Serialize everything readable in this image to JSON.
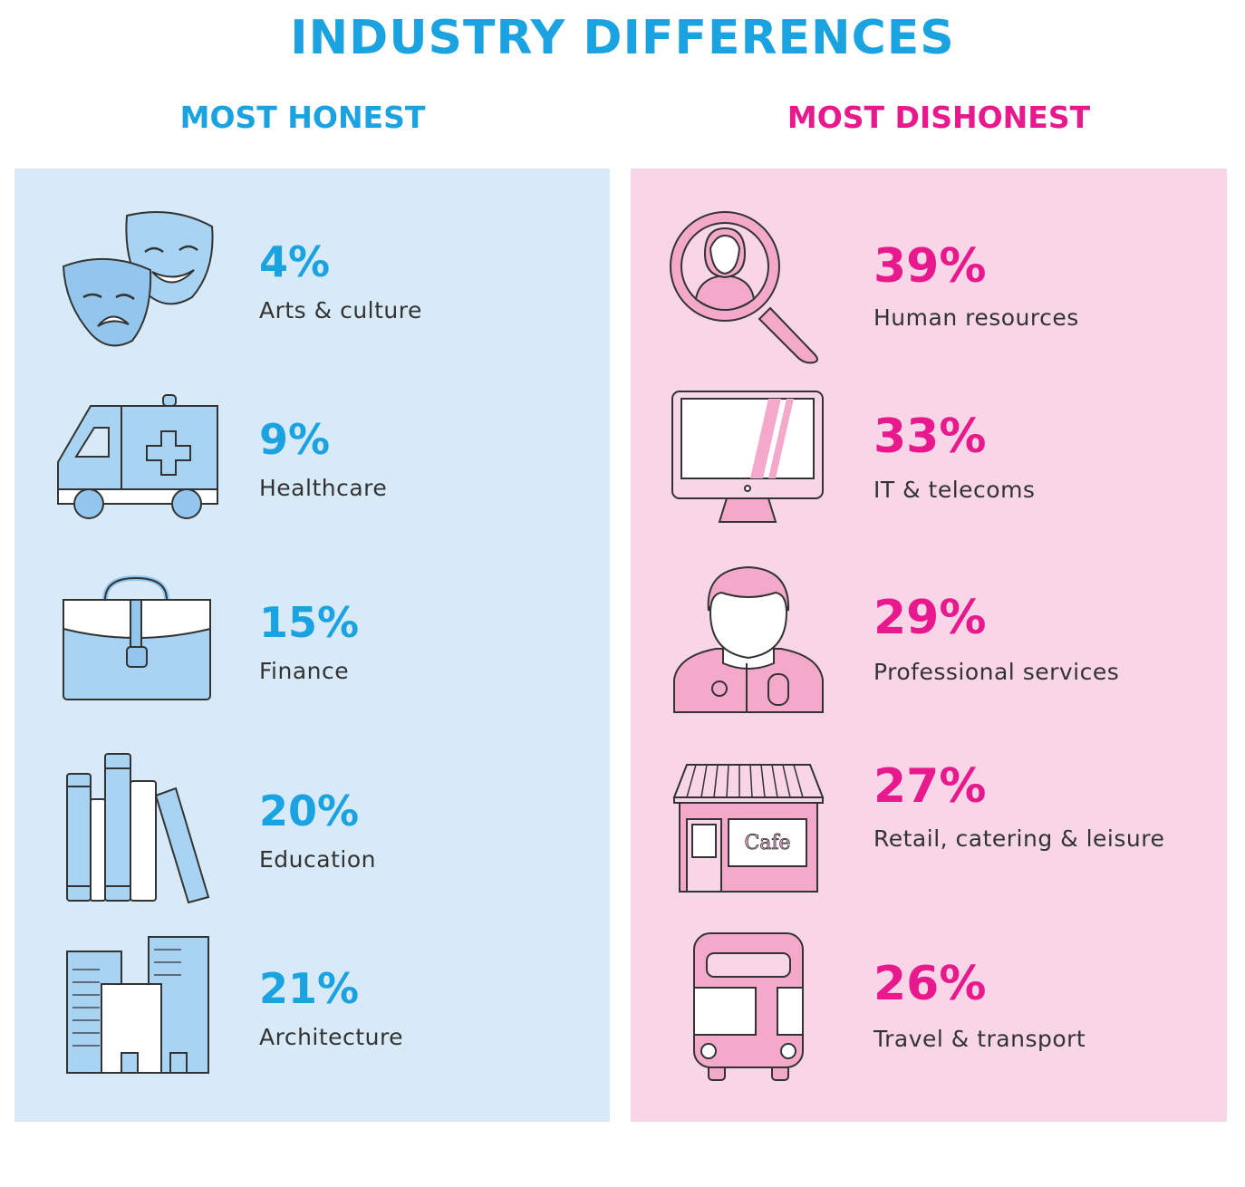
{
  "title": "INDUSTRY DIFFERENCES",
  "honest": {
    "heading": "MOST HONEST",
    "items": [
      {
        "percent": "4%",
        "label": "Arts & culture",
        "icon": "theatre-masks-icon"
      },
      {
        "percent": "9%",
        "label": "Healthcare",
        "icon": "ambulance-icon"
      },
      {
        "percent": "15%",
        "label": "Finance",
        "icon": "briefcase-icon"
      },
      {
        "percent": "20%",
        "label": "Education",
        "icon": "books-icon"
      },
      {
        "percent": "21%",
        "label": "Architecture",
        "icon": "buildings-icon"
      }
    ]
  },
  "dishonest": {
    "heading": "MOST DISHONEST",
    "items": [
      {
        "percent": "39%",
        "label": "Human resources",
        "icon": "person-magnifier-icon"
      },
      {
        "percent": "33%",
        "label": "IT & telecoms",
        "icon": "computer-monitor-icon"
      },
      {
        "percent": "29%",
        "label": "Professional services",
        "icon": "professional-person-icon"
      },
      {
        "percent": "27%",
        "label": "Retail, catering & leisure",
        "icon": "cafe-shop-icon",
        "sign": "Cafe"
      },
      {
        "percent": "26%",
        "label": "Travel & transport",
        "icon": "bus-icon"
      }
    ]
  },
  "colors": {
    "honest_accent": "#1aa3e0",
    "dishonest_accent": "#e8188d",
    "honest_panel": "#d8eaf8",
    "dishonest_panel": "#f9d6e7"
  }
}
